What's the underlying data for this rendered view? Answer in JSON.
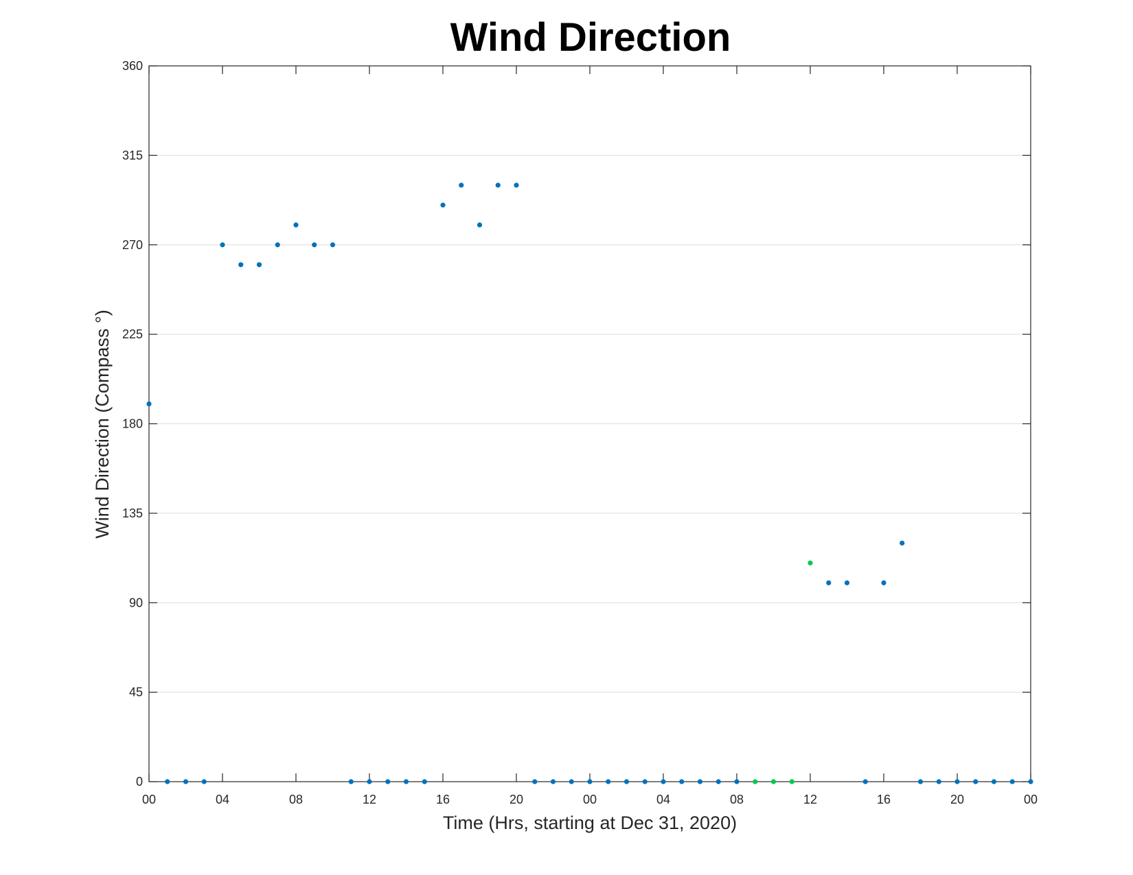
{
  "chart_data": {
    "type": "scatter",
    "title": "Wind Direction",
    "xlabel": "Time (Hrs, starting at Dec 31, 2020)",
    "ylabel": "Wind Direction (Compass °)",
    "xlim": [
      0,
      48
    ],
    "ylim": [
      0,
      360
    ],
    "grid": "y",
    "x_ticks": [
      {
        "x": 0,
        "label": "00"
      },
      {
        "x": 4,
        "label": "04"
      },
      {
        "x": 8,
        "label": "08"
      },
      {
        "x": 12,
        "label": "12"
      },
      {
        "x": 16,
        "label": "16"
      },
      {
        "x": 20,
        "label": "20"
      },
      {
        "x": 24,
        "label": "00"
      },
      {
        "x": 28,
        "label": "04"
      },
      {
        "x": 32,
        "label": "08"
      },
      {
        "x": 36,
        "label": "12"
      },
      {
        "x": 40,
        "label": "16"
      },
      {
        "x": 44,
        "label": "20"
      },
      {
        "x": 48,
        "label": "00"
      }
    ],
    "y_ticks": [
      0,
      45,
      90,
      135,
      180,
      225,
      270,
      315,
      360
    ],
    "series": [
      {
        "color": "#0072BD",
        "x": [
          0,
          1,
          2,
          3,
          4,
          5,
          6,
          7,
          8,
          9,
          10,
          11,
          12,
          13,
          14,
          15,
          16,
          17,
          18,
          19,
          20,
          21,
          22,
          23,
          24,
          25,
          26,
          27,
          28,
          29,
          30,
          31,
          32,
          37,
          38,
          39,
          40,
          41,
          42,
          43,
          44,
          45,
          46,
          47,
          48
        ],
        "values": [
          190,
          0,
          0,
          0,
          270,
          260,
          260,
          270,
          280,
          270,
          270,
          0,
          0,
          0,
          0,
          0,
          290,
          300,
          280,
          300,
          300,
          0,
          0,
          0,
          0,
          0,
          0,
          0,
          0,
          0,
          0,
          0,
          0,
          100,
          100,
          0,
          100,
          120,
          0,
          0,
          0,
          0,
          0,
          0,
          0
        ]
      },
      {
        "color": "#00C853",
        "x": [
          33,
          34,
          35,
          36
        ],
        "values": [
          0,
          0,
          0,
          110
        ]
      }
    ]
  }
}
